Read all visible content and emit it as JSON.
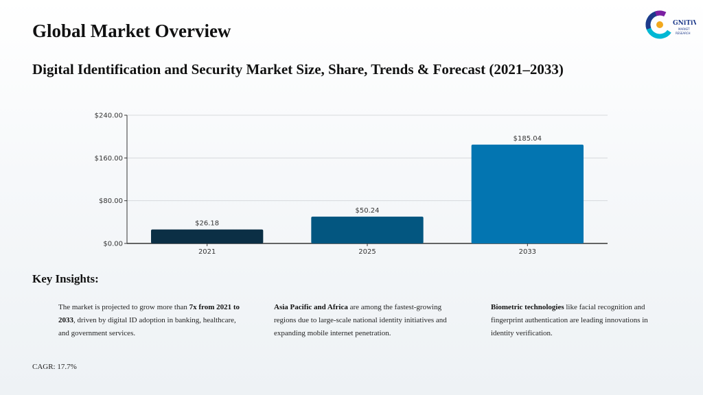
{
  "page": {
    "title": "Global Market Overview",
    "subtitle": "Digital Identification and Security Market Size, Share, Trends & Forecast (2021–2033)"
  },
  "logo": {
    "letter": "C",
    "word": "GNiTiVE",
    "line1": "MARKET",
    "line2": "RESEARCH",
    "colors": [
      "#00b8d4",
      "#1e3a8a",
      "#7b1fa2",
      "#f2a81d"
    ]
  },
  "chart_data": {
    "type": "bar",
    "categories": [
      "2021",
      "2025",
      "2033"
    ],
    "values": [
      26.18,
      50.24,
      185.04
    ],
    "value_labels": [
      "$26.18",
      "$50.24",
      "$185.04"
    ],
    "bar_colors": [
      "#0b2f45",
      "#035680",
      "#0375b1"
    ],
    "y_ticks": [
      "$0.00",
      "$80.00",
      "$160.00",
      "$240.00"
    ],
    "y_tick_values": [
      0,
      80,
      160,
      240
    ],
    "ylim": [
      0,
      240
    ],
    "grid": true,
    "xlabel": "",
    "ylabel": "",
    "title": ""
  },
  "insights": {
    "heading": "Key Insights:",
    "items": [
      {
        "pre": "The market is projected to grow more than ",
        "bold": "7x from 2021 to 2033",
        "post": ", driven by digital ID adoption in banking, healthcare, and government services."
      },
      {
        "pre": "",
        "bold": "Asia Pacific and Africa",
        "post": " are among the fastest-growing regions due to large-scale national identity initiatives and expanding mobile internet penetration."
      },
      {
        "pre": "",
        "bold": "Biometric technologies",
        "post": " like facial recognition and fingerprint authentication are leading innovations in identity verification."
      }
    ]
  },
  "footer": {
    "cagr": "CAGR: 17.7%"
  }
}
